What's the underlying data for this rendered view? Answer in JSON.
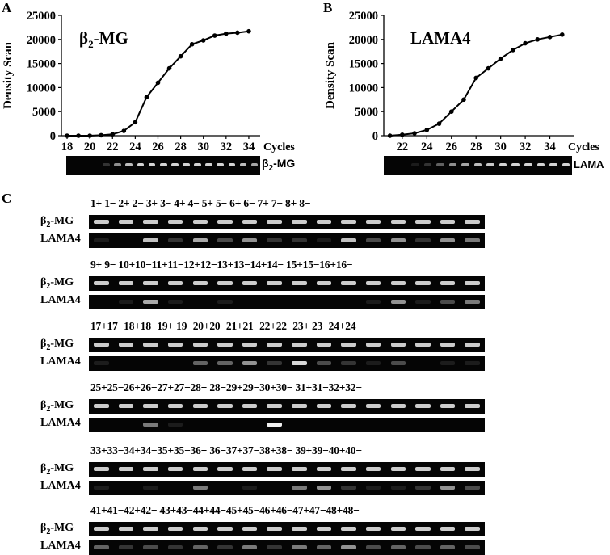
{
  "panels": {
    "A": "A",
    "B": "B",
    "C": "C"
  },
  "chart_data": [
    {
      "type": "line",
      "panel": "A",
      "title": "β2-MG",
      "title_main": "β",
      "title_sub": "2",
      "title_rest": "-MG",
      "ylabel": "Density Scan",
      "xlabel": "Cycles",
      "ylim": [
        0,
        25000
      ],
      "yticks": [
        0,
        5000,
        10000,
        15000,
        20000,
        25000
      ],
      "xlim": [
        17.5,
        35
      ],
      "xticks": [
        18,
        20,
        22,
        24,
        26,
        28,
        30,
        32,
        34
      ],
      "x": [
        18,
        19,
        20,
        21,
        22,
        23,
        24,
        25,
        26,
        27,
        28,
        29,
        30,
        31,
        32,
        33,
        34
      ],
      "y": [
        0,
        0,
        0,
        100,
        300,
        1000,
        2800,
        8000,
        11000,
        14000,
        16500,
        19000,
        19800,
        20800,
        21200,
        21400,
        21700
      ],
      "gel_label_main": "β",
      "gel_label_sub": "2",
      "gel_label_rest": "-MG"
    },
    {
      "type": "line",
      "panel": "B",
      "title": "LAMA4",
      "ylabel": "Density Scan",
      "xlabel": "Cycles",
      "ylim": [
        0,
        25000
      ],
      "yticks": [
        0,
        5000,
        10000,
        15000,
        20000,
        25000
      ],
      "xlim": [
        20.5,
        36
      ],
      "xticks": [
        22,
        24,
        26,
        28,
        30,
        32,
        34
      ],
      "x": [
        21,
        22,
        23,
        24,
        25,
        26,
        27,
        28,
        29,
        30,
        31,
        32,
        33,
        34,
        35
      ],
      "y": [
        0,
        200,
        500,
        1200,
        2500,
        5000,
        7500,
        12000,
        14000,
        16000,
        17800,
        19200,
        20000,
        20500,
        21000
      ],
      "gel_label": "LAMA"
    }
  ],
  "gel": {
    "row_label_b2": "β2-MG",
    "row_label_b2_main": "β",
    "row_label_b2_sub": "2",
    "row_label_b2_rest": "-MG",
    "row_label_lama": "LAMA4",
    "groups": [
      {
        "lanes": "1+ 1− 2+ 2− 3+ 3− 4+ 4− 5+ 5− 6+ 6− 7+ 7− 8+ 8−"
      },
      {
        "lanes": "9+ 9− 10+10−11+11−12+12−13+13−14+14− 15+15−16+16−"
      },
      {
        "lanes": "17+17−18+18−19+ 19−20+20−21+21−22+22−23+ 23−24+24−"
      },
      {
        "lanes": "25+25−26+26−27+27−28+ 28−29+29−30+30− 31+31−32+32−"
      },
      {
        "lanes": "33+33−34+34−35+35−36+ 36−37+37−38+38− 39+39−40+40−"
      },
      {
        "lanes": "41+41−42+42− 43+43−44+44−45+45−46+46−47+47−48+48−"
      }
    ]
  }
}
